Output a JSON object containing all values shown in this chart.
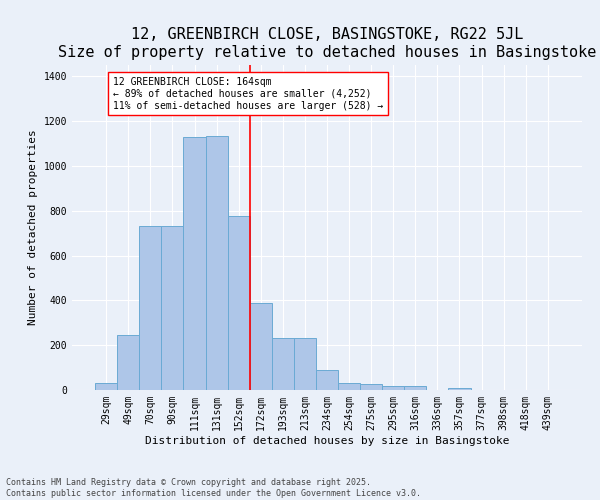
{
  "title": "12, GREENBIRCH CLOSE, BASINGSTOKE, RG22 5JL",
  "subtitle": "Size of property relative to detached houses in Basingstoke",
  "xlabel": "Distribution of detached houses by size in Basingstoke",
  "ylabel": "Number of detached properties",
  "categories": [
    "29sqm",
    "49sqm",
    "70sqm",
    "90sqm",
    "111sqm",
    "131sqm",
    "152sqm",
    "172sqm",
    "193sqm",
    "213sqm",
    "234sqm",
    "254sqm",
    "275sqm",
    "295sqm",
    "316sqm",
    "336sqm",
    "357sqm",
    "377sqm",
    "398sqm",
    "418sqm",
    "439sqm"
  ],
  "values": [
    30,
    245,
    730,
    730,
    1130,
    1135,
    775,
    390,
    230,
    230,
    90,
    30,
    25,
    20,
    17,
    0,
    10,
    0,
    0,
    0,
    0
  ],
  "bar_color": "#aec6e8",
  "bar_edge_color": "#6aaad4",
  "marker_label_line1": "12 GREENBIRCH CLOSE: 164sqm",
  "marker_label_line2": "← 89% of detached houses are smaller (4,252)",
  "marker_label_line3": "11% of semi-detached houses are larger (528) →",
  "bg_color": "#eaf0f9",
  "grid_color": "#ffffff",
  "title_fontsize": 11,
  "axis_fontsize": 8,
  "tick_fontsize": 7,
  "footer_line1": "Contains HM Land Registry data © Crown copyright and database right 2025.",
  "footer_line2": "Contains public sector information licensed under the Open Government Licence v3.0.",
  "ylim": [
    0,
    1450
  ],
  "yticks": [
    0,
    200,
    400,
    600,
    800,
    1000,
    1200,
    1400
  ]
}
